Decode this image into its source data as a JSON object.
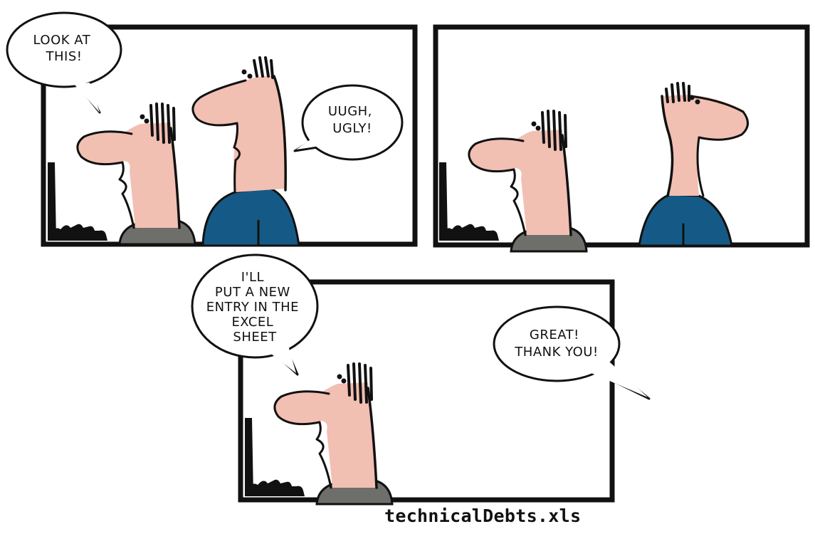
{
  "panels": [
    {
      "bubbles": [
        {
          "lines": [
            "LOOK AT",
            "THIS!"
          ]
        },
        {
          "lines": [
            "UUGH,",
            "UGLY!"
          ]
        }
      ]
    },
    {
      "bubbles": []
    },
    {
      "bubbles": [
        {
          "lines": [
            "I'LL",
            "PUT A NEW",
            "ENTRY IN THE",
            "EXCEL",
            "SHEET"
          ]
        },
        {
          "lines": [
            "GREAT!",
            "THANK YOU!"
          ]
        }
      ]
    }
  ],
  "caption": "technicalDebts.xls",
  "colors": {
    "skin": "#f2bfb3",
    "shirt_blue": "#155a86",
    "shirt_gray": "#6e6e6a",
    "ink": "#111111",
    "paper": "#ffffff"
  }
}
